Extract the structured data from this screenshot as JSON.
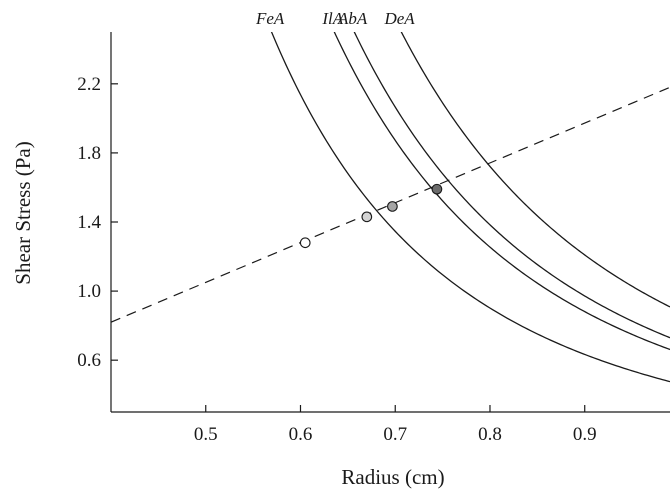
{
  "chart_data": {
    "type": "line",
    "xlabel": "Radius (cm)",
    "ylabel": "Shear Stress (Pa)",
    "xlim": [
      0.4,
      0.99
    ],
    "ylim": [
      0.3,
      2.5
    ],
    "x_ticks": [
      0.5,
      0.6,
      0.7,
      0.8,
      0.9
    ],
    "x_tick_labels": [
      "0.5",
      "0.6",
      "0.7",
      "0.8",
      "0.9"
    ],
    "y_ticks": [
      0.6,
      1.0,
      1.4,
      1.8,
      2.2
    ],
    "y_tick_labels": [
      "0.6",
      "1.0",
      "1.4",
      "1.8",
      "2.2"
    ],
    "grid": false,
    "series": [
      {
        "name": "FeA",
        "k": 0.4617,
        "marker_x": 0.605,
        "marker_y": 1.28,
        "marker_color": "#ffffff"
      },
      {
        "name": "IlA",
        "k": 0.6423,
        "marker_x": 0.67,
        "marker_y": 1.43,
        "marker_color": "#d4d4d4"
      },
      {
        "name": "AbA",
        "k": 0.7084,
        "marker_x": 0.697,
        "marker_y": 1.49,
        "marker_color": "#a6a6a6"
      },
      {
        "name": "DeA",
        "k": 0.8815,
        "marker_x": 0.744,
        "marker_y": 1.59,
        "marker_color": "#6b6b6b"
      }
    ],
    "curve_model": "y = k / x^3",
    "reference_line": {
      "style": "dashed",
      "x": [
        0.4,
        0.99
      ],
      "y": [
        0.82,
        2.18
      ]
    }
  }
}
